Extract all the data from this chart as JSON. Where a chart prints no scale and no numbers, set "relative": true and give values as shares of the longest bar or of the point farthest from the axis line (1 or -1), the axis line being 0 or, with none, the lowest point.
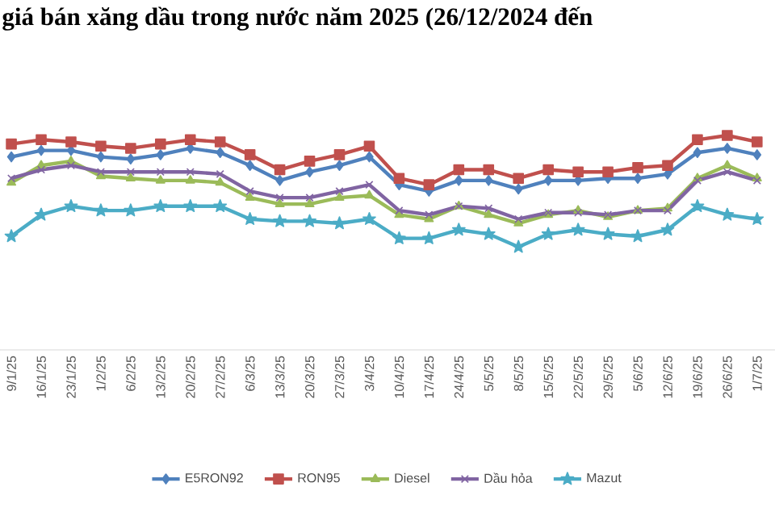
{
  "chart_data": {
    "type": "line",
    "title": "giá bán xăng dầu trong nước năm 2025 (26/12/2024 đến",
    "relative": true,
    "legend": "bottom",
    "grid": false,
    "categories": [
      "9/1/25",
      "16/1/25",
      "23/1/25",
      "1/2/25",
      "6/2/25",
      "13/2/25",
      "20/2/25",
      "27/2/25",
      "6/3/25",
      "13/3/25",
      "20/3/25",
      "27/3/25",
      "3/4/25",
      "10/4/25",
      "17/4/25",
      "24/4/25",
      "5/5/25",
      "8/5/25",
      "15/5/25",
      "22/5/25",
      "29/5/25",
      "5/6/25",
      "12/6/25",
      "19/6/25",
      "26/6/25",
      "1/7/25"
    ],
    "series": [
      {
        "name": "E5RON92",
        "color": "#4f81bd",
        "marker": "diamond",
        "values": [
          0.9,
          0.93,
          0.93,
          0.9,
          0.89,
          0.91,
          0.94,
          0.92,
          0.86,
          0.79,
          0.83,
          0.86,
          0.9,
          0.77,
          0.74,
          0.79,
          0.79,
          0.75,
          0.79,
          0.79,
          0.8,
          0.8,
          0.82,
          0.92,
          0.94,
          0.91
        ]
      },
      {
        "name": "RON95",
        "color": "#c0504d",
        "marker": "square",
        "values": [
          0.96,
          0.98,
          0.97,
          0.95,
          0.94,
          0.96,
          0.98,
          0.97,
          0.91,
          0.84,
          0.88,
          0.91,
          0.95,
          0.8,
          0.77,
          0.84,
          0.84,
          0.8,
          0.84,
          0.83,
          0.83,
          0.85,
          0.86,
          0.98,
          1.0,
          0.97
        ]
      },
      {
        "name": "Diesel",
        "color": "#9bbb59",
        "marker": "triangle",
        "values": [
          0.78,
          0.86,
          0.88,
          0.81,
          0.8,
          0.79,
          0.79,
          0.78,
          0.71,
          0.68,
          0.68,
          0.71,
          0.72,
          0.63,
          0.61,
          0.67,
          0.63,
          0.59,
          0.63,
          0.65,
          0.62,
          0.65,
          0.66,
          0.8,
          0.86,
          0.8
        ]
      },
      {
        "name": "Dầu hỏa",
        "color": "#8064a2",
        "marker": "cross",
        "values": [
          0.8,
          0.84,
          0.86,
          0.83,
          0.83,
          0.83,
          0.83,
          0.82,
          0.74,
          0.71,
          0.71,
          0.74,
          0.77,
          0.65,
          0.63,
          0.67,
          0.66,
          0.61,
          0.64,
          0.64,
          0.63,
          0.65,
          0.65,
          0.79,
          0.83,
          0.79
        ]
      },
      {
        "name": "Mazut",
        "color": "#4bacc6",
        "marker": "star",
        "values": [
          0.53,
          0.63,
          0.67,
          0.65,
          0.65,
          0.67,
          0.67,
          0.67,
          0.61,
          0.6,
          0.6,
          0.59,
          0.61,
          0.52,
          0.52,
          0.56,
          0.54,
          0.48,
          0.54,
          0.56,
          0.54,
          0.53,
          0.56,
          0.67,
          0.63,
          0.61
        ]
      }
    ]
  }
}
